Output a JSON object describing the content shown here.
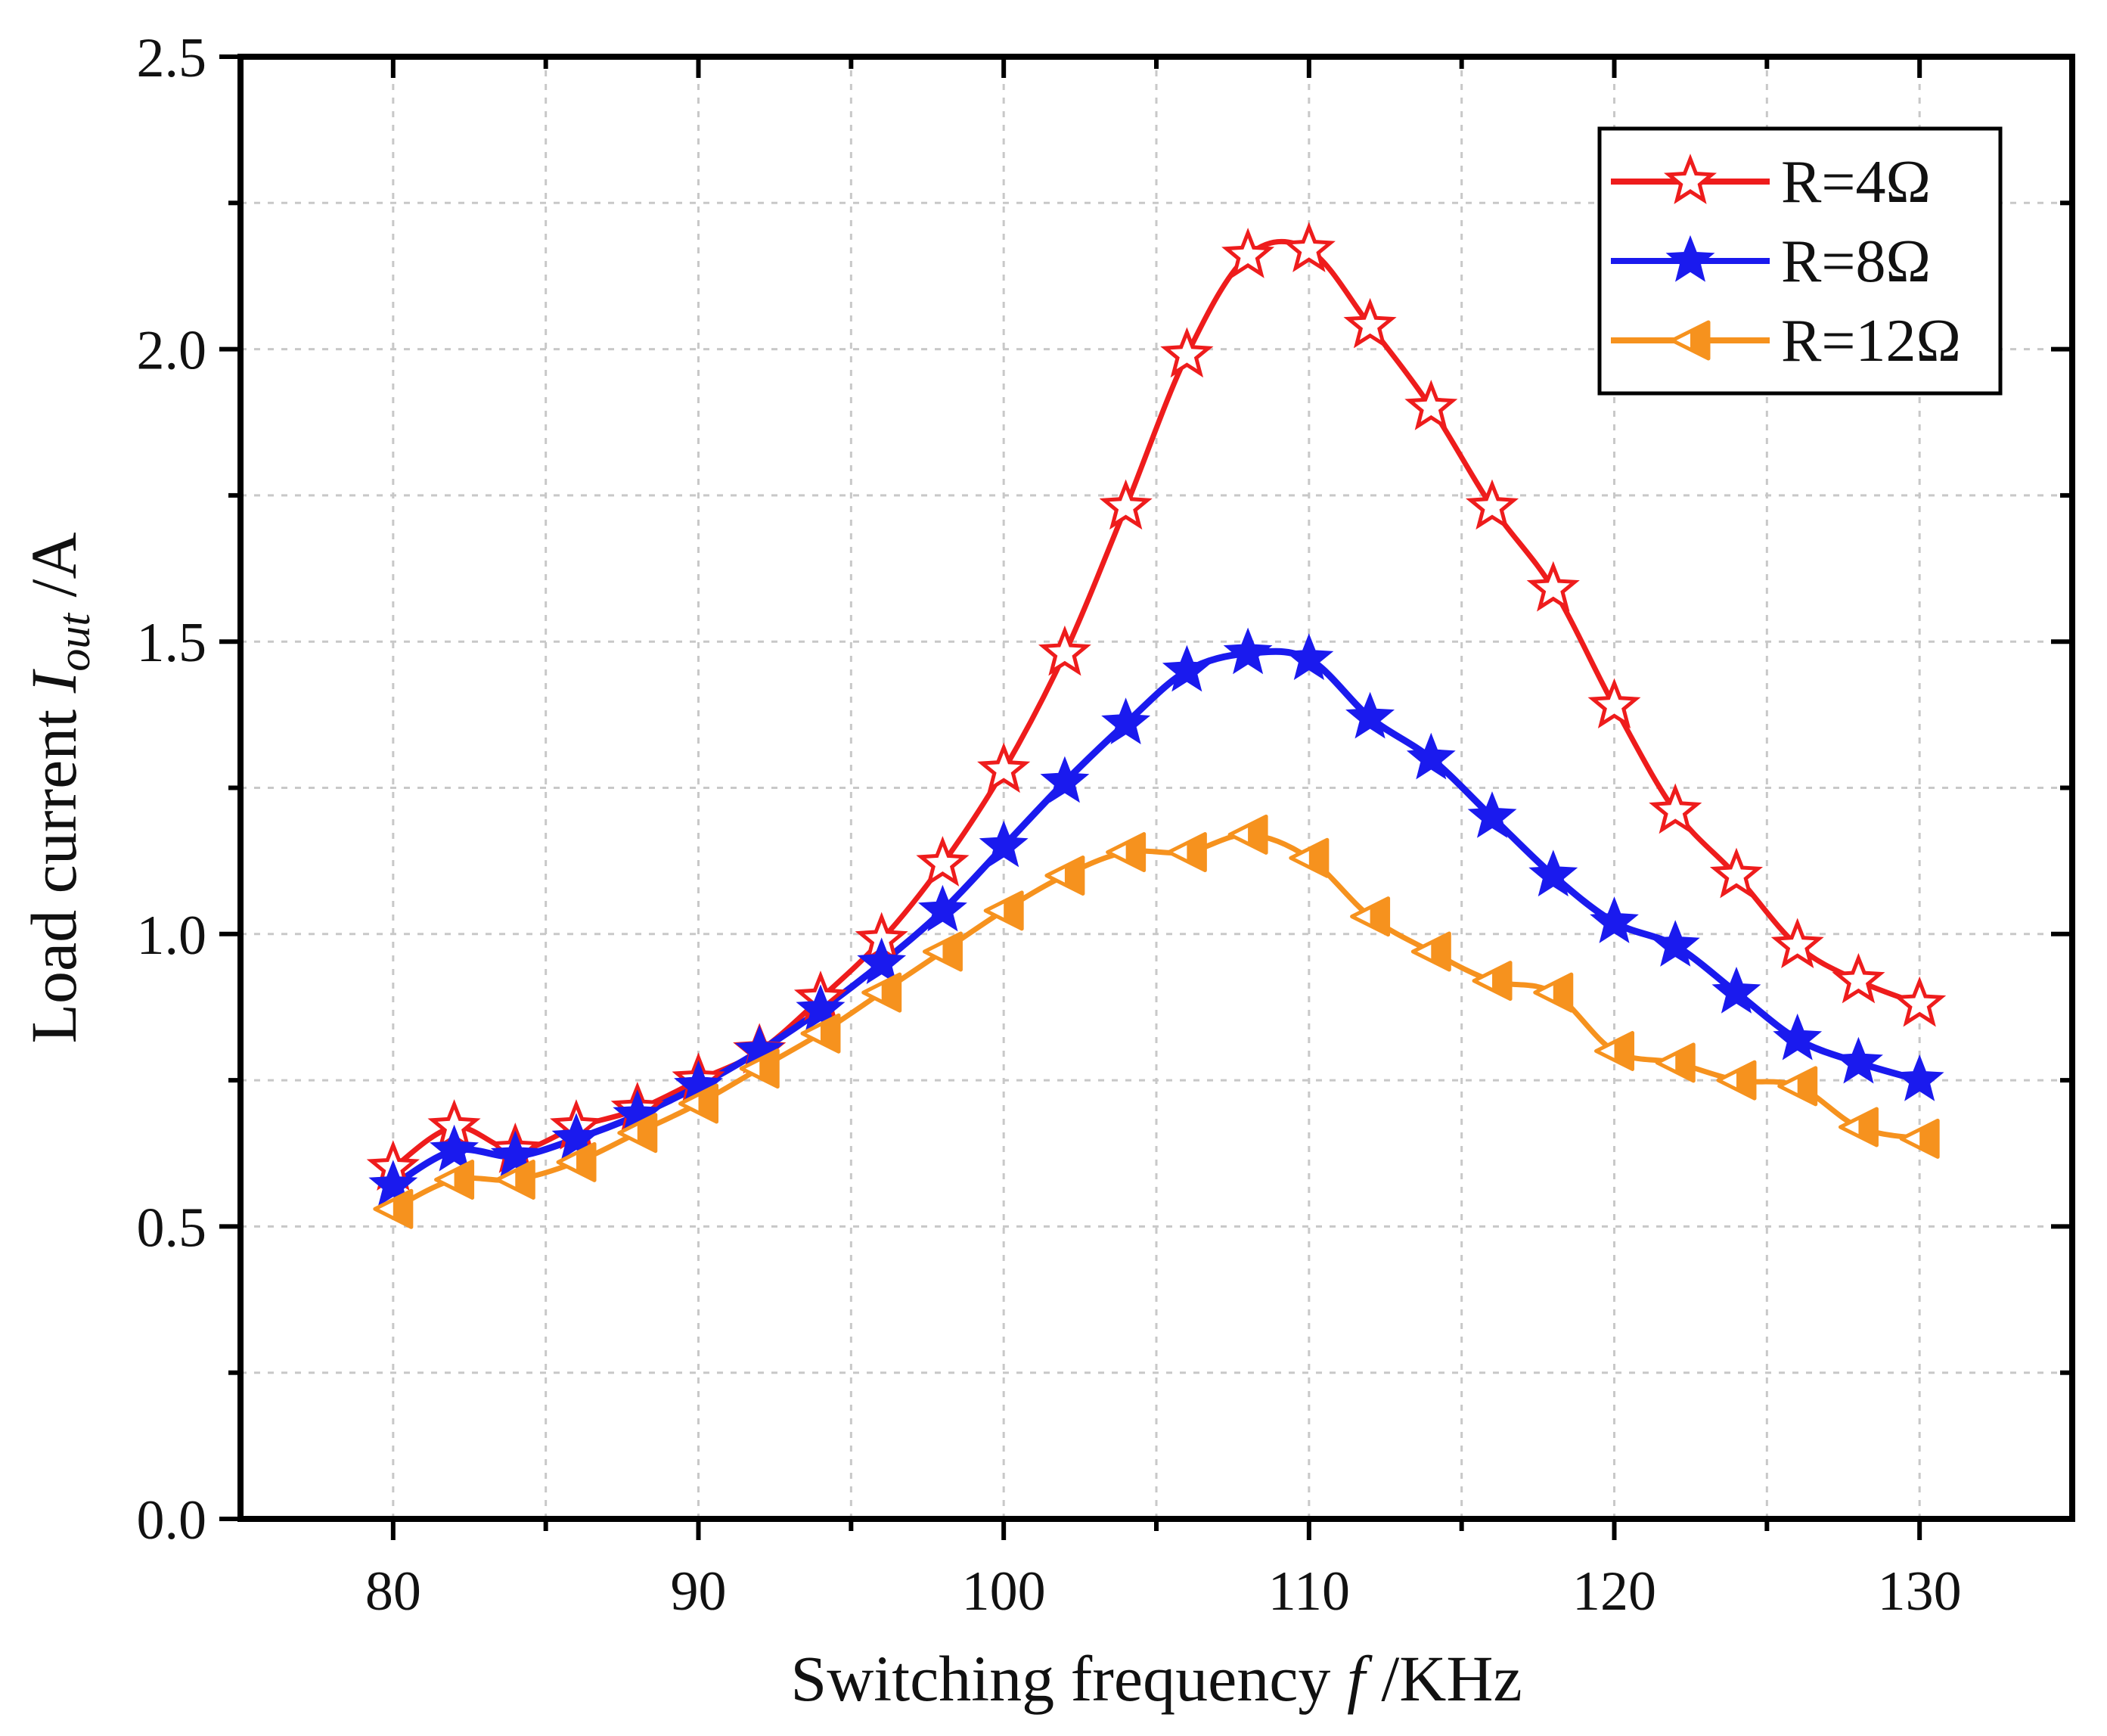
{
  "chart_data": {
    "type": "line",
    "title": "",
    "xlabel": "Switching frequency",
    "xlabel_symbol": "f",
    "xlabel_unit": "/KHz",
    "ylabel": "Load current",
    "ylabel_symbol": "I",
    "ylabel_subscript": "out",
    "ylabel_unit": "/A",
    "xlim": [
      75,
      135
    ],
    "ylim": [
      0.0,
      2.5
    ],
    "xticks": [
      80,
      90,
      100,
      110,
      120,
      130
    ],
    "xtick_labels": [
      "80",
      "90",
      "100",
      "110",
      "120",
      "130"
    ],
    "yticks": [
      0.0,
      0.5,
      1.0,
      1.5,
      2.0,
      2.5
    ],
    "ytick_labels": [
      "0.0",
      "0.5",
      "1.0",
      "1.5",
      "2.0",
      "2.5"
    ],
    "grid": true,
    "legend_position": "top-right",
    "x": [
      80,
      82,
      84,
      86,
      88,
      90,
      92,
      94,
      96,
      98,
      100,
      102,
      104,
      106,
      108,
      110,
      112,
      114,
      116,
      118,
      120,
      122,
      124,
      126,
      128,
      130
    ],
    "series": [
      {
        "name": "R=4Ω",
        "color": "#ee1c1c",
        "marker": "star-open",
        "values": [
          0.6,
          0.67,
          0.63,
          0.67,
          0.7,
          0.75,
          0.8,
          0.89,
          0.99,
          1.12,
          1.28,
          1.48,
          1.73,
          1.99,
          2.16,
          2.17,
          2.04,
          1.9,
          1.73,
          1.59,
          1.39,
          1.21,
          1.1,
          0.98,
          0.92,
          0.88
        ]
      },
      {
        "name": "R=8Ω",
        "color": "#1a1aee",
        "marker": "star-filled",
        "values": [
          0.57,
          0.63,
          0.62,
          0.65,
          0.69,
          0.74,
          0.8,
          0.87,
          0.95,
          1.04,
          1.15,
          1.26,
          1.36,
          1.45,
          1.48,
          1.47,
          1.37,
          1.3,
          1.2,
          1.1,
          1.02,
          0.98,
          0.9,
          0.82,
          0.78,
          0.75
        ]
      },
      {
        "name": "R=12Ω",
        "color": "#f6921e",
        "marker": "triangle-left-half",
        "values": [
          0.53,
          0.58,
          0.58,
          0.61,
          0.66,
          0.71,
          0.77,
          0.83,
          0.9,
          0.97,
          1.04,
          1.1,
          1.14,
          1.14,
          1.17,
          1.13,
          1.03,
          0.97,
          0.92,
          0.9,
          0.8,
          0.78,
          0.75,
          0.74,
          0.67,
          0.65
        ]
      }
    ]
  }
}
